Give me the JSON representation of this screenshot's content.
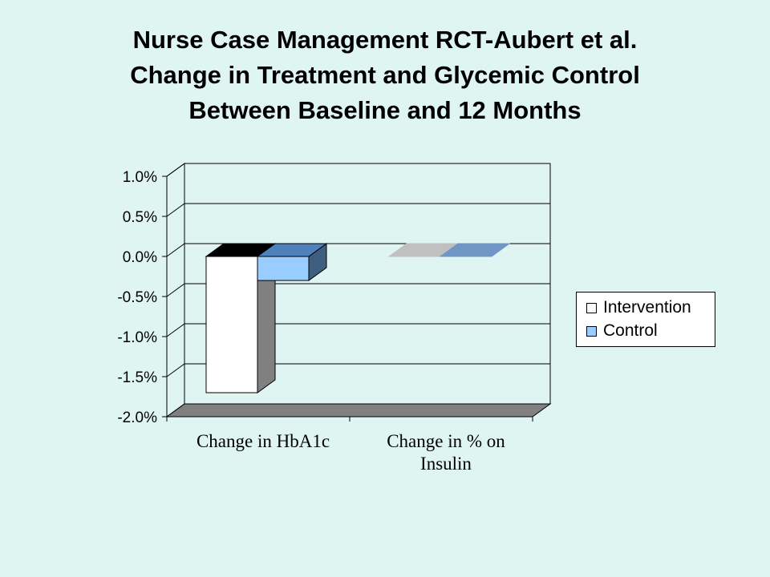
{
  "title_lines": [
    "Nurse Case Management RCT-Aubert et al.",
    "Change in Treatment and Glycemic Control",
    "Between Baseline and 12 Months"
  ],
  "chart_data": {
    "type": "bar",
    "title": "",
    "xlabel": "",
    "ylabel": "",
    "categories": [
      "Change in HbA1c",
      "Change in % on Insulin"
    ],
    "series": [
      {
        "name": "Intervention",
        "values": [
          -1.7,
          0
        ],
        "color": "#ffffff",
        "top_color": "#000000",
        "side_color": "#808080"
      },
      {
        "name": "Control",
        "values": [
          -0.3,
          0
        ],
        "color": "#99ccff",
        "top_color": "#4f81bd",
        "side_color": "#3f5f80"
      }
    ],
    "zero_bar_colors": [
      "#c0c0c0",
      "#6f96c4"
    ],
    "ylim": [
      -2.0,
      1.0
    ],
    "yticks": [
      "1.0%",
      "0.5%",
      "0.0%",
      "-0.5%",
      "-1.0%",
      "-1.5%",
      "-2.0%"
    ],
    "grid": true,
    "legend": "right",
    "three_d": true
  },
  "colors": {
    "background": "#dff5f1",
    "plot_wall": "#dff5f1",
    "floor": "#808080"
  }
}
